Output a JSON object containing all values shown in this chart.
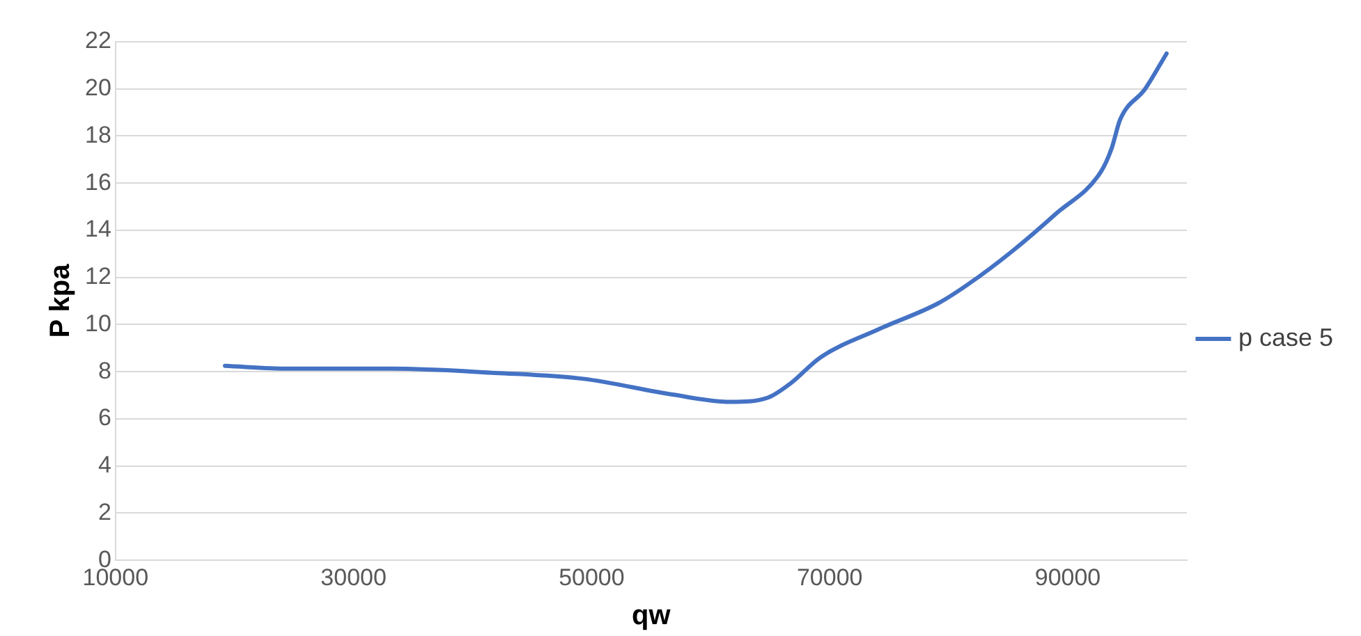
{
  "chart_data": {
    "type": "line",
    "xlabel": "qw",
    "ylabel": "P kpa",
    "xlim": [
      10000,
      100000
    ],
    "xticks": [
      10000,
      30000,
      50000,
      70000,
      90000
    ],
    "ylim": [
      0,
      22
    ],
    "yticks": [
      0,
      2,
      4,
      6,
      8,
      10,
      12,
      14,
      16,
      18,
      20,
      22
    ],
    "grid": "y",
    "legend": "right",
    "marker": "none",
    "line_style": "solid",
    "series": [
      {
        "name": "p case 5",
        "color": "#4472c4",
        "x": [
          19200,
          24500,
          33200,
          41900,
          49300,
          56800,
          61700,
          64800,
          66700,
          69200,
          74100,
          79100,
          81600,
          85300,
          89000,
          92800,
          93700,
          94400,
          96500,
          98300
        ],
        "values": [
          8.25,
          8.13,
          8.13,
          7.95,
          7.7,
          7.03,
          6.72,
          6.9,
          7.5,
          8.6,
          9.8,
          10.9,
          11.7,
          13.1,
          14.7,
          16.5,
          17.5,
          18.7,
          20.0,
          21.5
        ]
      }
    ]
  }
}
